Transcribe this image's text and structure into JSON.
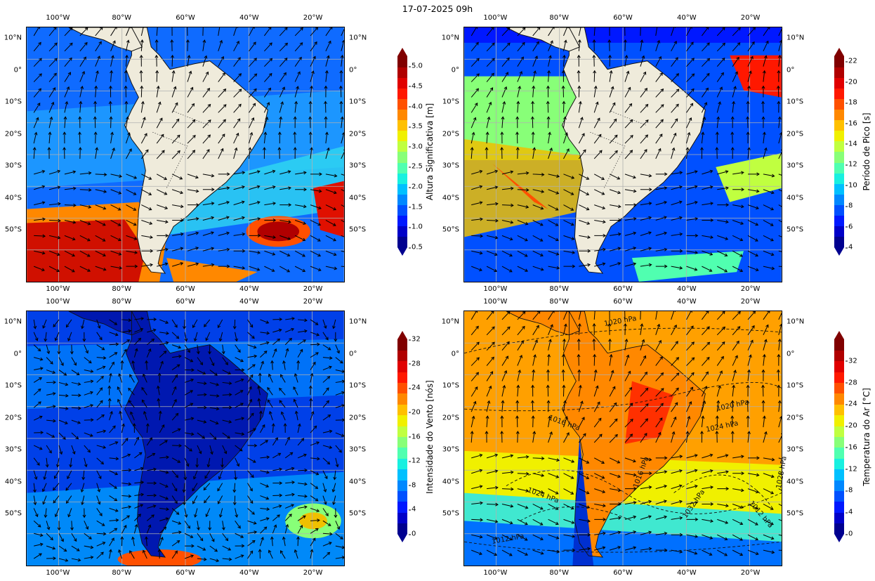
{
  "title": "17-07-2025 09h",
  "lon_labels": [
    "100°W",
    "80°W",
    "60°W",
    "40°W",
    "20°W"
  ],
  "lat_labels": [
    "10°N",
    "0°",
    "10°S",
    "20°S",
    "30°S",
    "40°S",
    "50°S"
  ],
  "panels": [
    {
      "id": "wave-height",
      "colorbar": {
        "label": "Altura Significativa [m]",
        "ticks": [
          "0.5",
          "1.0",
          "1.5",
          "2.0",
          "2.5",
          "3.0",
          "3.5",
          "4.0",
          "4.5",
          "5.0"
        ],
        "min": 0.5,
        "max": 5.25,
        "colors": [
          "#00008f",
          "#0000c8",
          "#0018ff",
          "#0050ff",
          "#0088ff",
          "#00c0ff",
          "#18f0e0",
          "#50ffb0",
          "#88ff78",
          "#c0ff40",
          "#f0f000",
          "#ffc000",
          "#ff8800",
          "#ff5000",
          "#ff1800",
          "#e00000",
          "#b00000",
          "#800000"
        ]
      }
    },
    {
      "id": "peak-period",
      "colorbar": {
        "label": "Período de Pico [s]",
        "ticks": [
          "4",
          "6",
          "8",
          "10",
          "12",
          "14",
          "16",
          "18",
          "20",
          "22"
        ],
        "min": 4,
        "max": 22.5,
        "colors": [
          "#00008f",
          "#0000c8",
          "#0018ff",
          "#0050ff",
          "#0088ff",
          "#00c0ff",
          "#18f0e0",
          "#50ffb0",
          "#88ff78",
          "#c0ff40",
          "#f0f000",
          "#ffc000",
          "#ff8800",
          "#ff5000",
          "#ff1800",
          "#e00000",
          "#b00000",
          "#800000"
        ]
      }
    },
    {
      "id": "wind-speed",
      "colorbar": {
        "label": "Intensidade do Vento [nós]",
        "ticks": [
          "0",
          "4",
          "8",
          "12",
          "16",
          "20",
          "24",
          "28",
          "32"
        ],
        "min": 0,
        "max": 32,
        "colors": [
          "#00008f",
          "#0000c8",
          "#0018ff",
          "#0050ff",
          "#0088ff",
          "#00c0ff",
          "#18f0e0",
          "#50ffb0",
          "#88ff78",
          "#c0ff40",
          "#f0f000",
          "#ffc000",
          "#ff8800",
          "#ff5000",
          "#ff1800",
          "#e00000",
          "#b00000",
          "#800000"
        ]
      }
    },
    {
      "id": "air-temperature",
      "colorbar": {
        "label": "Temperatura do Ar [°C]",
        "ticks": [
          "0",
          "4",
          "8",
          "12",
          "16",
          "20",
          "24",
          "28",
          "32"
        ],
        "min": 0,
        "max": 36,
        "colors": [
          "#00008f",
          "#0000c8",
          "#0018ff",
          "#0050ff",
          "#0088ff",
          "#00c0ff",
          "#18f0e0",
          "#50ffb0",
          "#88ff78",
          "#c0ff40",
          "#f0f000",
          "#ffc000",
          "#ff8800",
          "#ff5000",
          "#ff1800",
          "#e00000",
          "#b00000",
          "#800000"
        ]
      },
      "isobar_labels": [
        "1020 hPa",
        "1016 hPa",
        "1016 hPa",
        "1020 hPa",
        "1024 hPa",
        "1028 hPa",
        "1024 hPa",
        "1032 hPa",
        "1012 hPa",
        "1012 hPa"
      ]
    }
  ]
}
